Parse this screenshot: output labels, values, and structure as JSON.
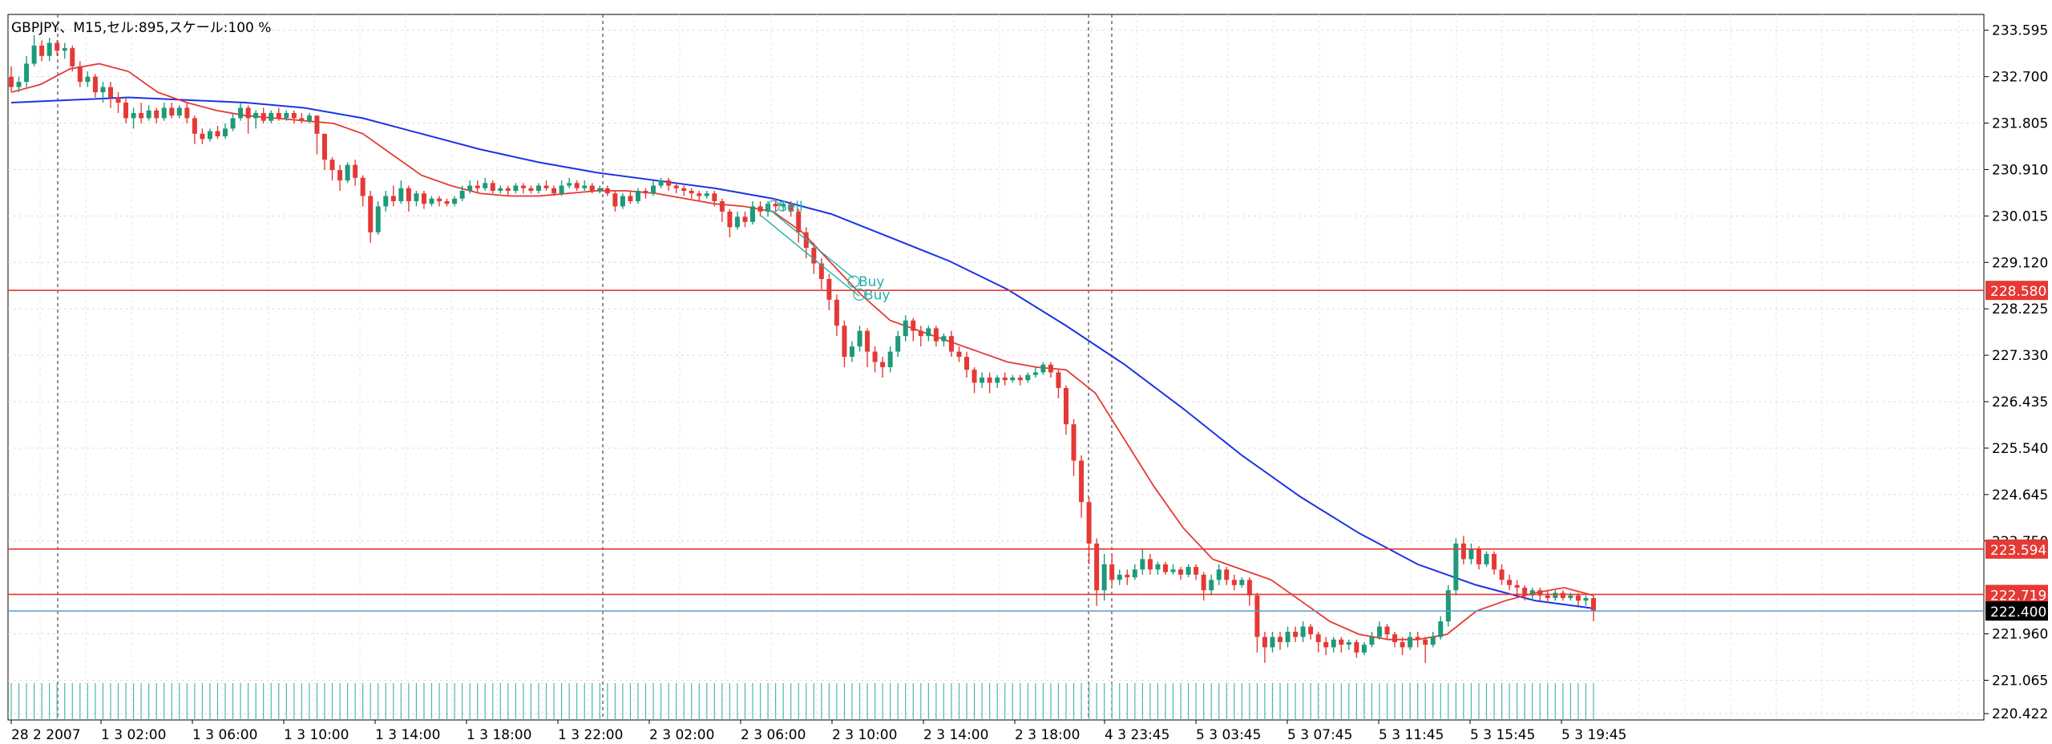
{
  "header": {
    "symbol": "GBPJPY",
    "separator": "、",
    "timeframe": "M15",
    "cells_label": "セル:",
    "cells_value": "895",
    "scale_label": "スケール:",
    "scale_value": "100 %"
  },
  "chart_data": {
    "type": "candlestick",
    "symbol": "GBPJPY",
    "timeframe": "M15",
    "y_ticks": [
      "233.595",
      "232.700",
      "231.805",
      "230.910",
      "230.015",
      "229.120",
      "228.225",
      "227.330",
      "226.435",
      "225.540",
      "224.645",
      "223.750",
      "221.960",
      "221.065",
      "220.422"
    ],
    "ylim": [
      220.3,
      233.9
    ],
    "time_labels": [
      "28 2 2007",
      "1 3 02:00",
      "1 3 06:00",
      "1 3 10:00",
      "1 3 14:00",
      "1 3 18:00",
      "1 3 22:00",
      "2 3 02:00",
      "2 3 06:00",
      "2 3 10:00",
      "2 3 14:00",
      "2 3 18:00",
      "4 3 23:45",
      "5 3 03:45",
      "5 3 07:45",
      "5 3 11:45",
      "5 3 15:45",
      "5 3 19:45"
    ],
    "horizontal_lines": [
      {
        "price": 228.58,
        "label": "228.580",
        "color": "#e53935"
      },
      {
        "price": 223.594,
        "label": "223.594",
        "color": "#e53935"
      },
      {
        "price": 222.719,
        "label": "222.719",
        "color": "#e53935"
      },
      {
        "price": 222.4,
        "label": "222.400",
        "color": "#5b9bd5",
        "label_bg": "#000000"
      }
    ],
    "vertical_separators": [
      "28 2 2007",
      "1 3 22:00",
      "2 3 18:00",
      "4 3 23:45"
    ],
    "trade_markers": [
      {
        "text": "Sell",
        "price": 230.2
      },
      {
        "text": "Buy",
        "price": 228.75
      },
      {
        "text": "Buy",
        "price": 228.5
      }
    ],
    "candles": [
      [
        232.7,
        232.5,
        232.9,
        232.4
      ],
      [
        232.5,
        232.6,
        232.7,
        232.4
      ],
      [
        232.6,
        232.95,
        233.1,
        232.5
      ],
      [
        232.95,
        233.3,
        233.5,
        232.9
      ],
      [
        233.3,
        233.1,
        233.4,
        233.0
      ],
      [
        233.1,
        233.35,
        233.45,
        233.0
      ],
      [
        233.35,
        233.2,
        233.4,
        233.1
      ],
      [
        233.2,
        233.25,
        233.35,
        233.05
      ],
      [
        233.25,
        232.9,
        233.3,
        232.8
      ],
      [
        232.9,
        232.6,
        233.0,
        232.5
      ],
      [
        232.6,
        232.7,
        232.8,
        232.5
      ],
      [
        232.7,
        232.4,
        232.75,
        232.3
      ],
      [
        232.4,
        232.5,
        232.6,
        232.2
      ],
      [
        232.5,
        232.3,
        232.6,
        232.1
      ],
      [
        232.3,
        232.2,
        232.4,
        232.0
      ],
      [
        232.2,
        231.9,
        232.3,
        231.8
      ],
      [
        231.9,
        232.0,
        232.1,
        231.7
      ],
      [
        232.0,
        231.9,
        232.2,
        231.8
      ],
      [
        231.9,
        232.05,
        232.15,
        231.85
      ],
      [
        232.05,
        231.9,
        232.1,
        231.8
      ],
      [
        231.9,
        232.1,
        232.2,
        231.85
      ],
      [
        232.1,
        231.95,
        232.2,
        231.9
      ],
      [
        231.95,
        232.1,
        232.15,
        231.9
      ],
      [
        232.1,
        231.9,
        232.2,
        231.8
      ],
      [
        231.9,
        231.6,
        231.95,
        231.4
      ],
      [
        231.6,
        231.5,
        231.7,
        231.4
      ],
      [
        231.5,
        231.65,
        231.7,
        231.45
      ],
      [
        231.65,
        231.55,
        231.75,
        231.5
      ],
      [
        231.55,
        231.7,
        231.8,
        231.5
      ],
      [
        231.7,
        231.9,
        232.0,
        231.65
      ],
      [
        231.9,
        232.1,
        232.2,
        231.85
      ],
      [
        232.1,
        231.9,
        232.15,
        231.6
      ],
      [
        231.9,
        232.0,
        232.05,
        231.7
      ],
      [
        232.0,
        231.85,
        232.1,
        231.8
      ],
      [
        231.85,
        232.0,
        232.05,
        231.8
      ],
      [
        232.0,
        231.9,
        232.1,
        231.85
      ],
      [
        231.9,
        232.0,
        232.05,
        231.85
      ],
      [
        232.0,
        231.9,
        232.05,
        231.8
      ],
      [
        231.9,
        231.85,
        232.0,
        231.8
      ],
      [
        231.85,
        231.95,
        232.0,
        231.8
      ],
      [
        231.95,
        231.6,
        231.95,
        231.2
      ],
      [
        231.6,
        231.1,
        231.6,
        230.9
      ],
      [
        231.1,
        230.9,
        231.15,
        230.7
      ],
      [
        230.9,
        230.7,
        231.0,
        230.5
      ],
      [
        230.7,
        231.0,
        231.05,
        230.65
      ],
      [
        231.0,
        230.75,
        231.1,
        230.6
      ],
      [
        230.75,
        230.4,
        230.8,
        230.2
      ],
      [
        230.4,
        229.7,
        230.5,
        229.5
      ],
      [
        229.7,
        230.2,
        230.3,
        229.65
      ],
      [
        230.2,
        230.4,
        230.5,
        230.1
      ],
      [
        230.4,
        230.3,
        230.6,
        230.2
      ],
      [
        230.3,
        230.55,
        230.7,
        230.25
      ],
      [
        230.55,
        230.3,
        230.6,
        230.1
      ],
      [
        230.3,
        230.45,
        230.5,
        230.2
      ],
      [
        230.45,
        230.25,
        230.5,
        230.15
      ],
      [
        230.25,
        230.35,
        230.4,
        230.2
      ],
      [
        230.35,
        230.3,
        230.4,
        230.2
      ],
      [
        230.3,
        230.25,
        230.35,
        230.2
      ],
      [
        230.25,
        230.35,
        230.4,
        230.2
      ],
      [
        230.35,
        230.5,
        230.6,
        230.3
      ],
      [
        230.5,
        230.6,
        230.7,
        230.45
      ],
      [
        230.6,
        230.55,
        230.7,
        230.45
      ],
      [
        230.55,
        230.65,
        230.75,
        230.5
      ],
      [
        230.65,
        230.5,
        230.7,
        230.45
      ],
      [
        230.5,
        230.55,
        230.6,
        230.45
      ],
      [
        230.55,
        230.5,
        230.6,
        230.4
      ],
      [
        230.5,
        230.6,
        230.65,
        230.45
      ],
      [
        230.6,
        230.55,
        230.65,
        230.45
      ],
      [
        230.55,
        230.5,
        230.6,
        230.45
      ],
      [
        230.5,
        230.6,
        230.65,
        230.45
      ],
      [
        230.6,
        230.55,
        230.7,
        230.5
      ],
      [
        230.55,
        230.45,
        230.6,
        230.4
      ],
      [
        230.45,
        230.6,
        230.7,
        230.4
      ],
      [
        230.6,
        230.65,
        230.75,
        230.55
      ],
      [
        230.65,
        230.55,
        230.7,
        230.5
      ],
      [
        230.55,
        230.6,
        230.7,
        230.5
      ],
      [
        230.6,
        230.5,
        230.65,
        230.45
      ],
      [
        230.5,
        230.55,
        230.6,
        230.45
      ],
      [
        230.55,
        230.45,
        230.6,
        230.4
      ],
      [
        230.45,
        230.2,
        230.5,
        230.1
      ],
      [
        230.2,
        230.4,
        230.45,
        230.15
      ],
      [
        230.4,
        230.3,
        230.5,
        230.25
      ],
      [
        230.3,
        230.5,
        230.55,
        230.25
      ],
      [
        230.5,
        230.45,
        230.55,
        230.35
      ],
      [
        230.45,
        230.6,
        230.7,
        230.4
      ],
      [
        230.6,
        230.7,
        230.75,
        230.55
      ],
      [
        230.7,
        230.6,
        230.75,
        230.5
      ],
      [
        230.6,
        230.55,
        230.65,
        230.45
      ],
      [
        230.55,
        230.5,
        230.6,
        230.4
      ],
      [
        230.5,
        230.45,
        230.55,
        230.35
      ],
      [
        230.45,
        230.4,
        230.5,
        230.3
      ],
      [
        230.4,
        230.45,
        230.5,
        230.35
      ],
      [
        230.45,
        230.3,
        230.5,
        230.2
      ],
      [
        230.3,
        230.1,
        230.35,
        229.9
      ],
      [
        230.1,
        229.8,
        230.15,
        229.6
      ],
      [
        229.8,
        230.0,
        230.1,
        229.75
      ],
      [
        230.0,
        229.9,
        230.1,
        229.8
      ],
      [
        229.9,
        230.2,
        230.3,
        229.85
      ],
      [
        230.2,
        230.1,
        230.3,
        230.0
      ],
      [
        230.1,
        230.25,
        230.3,
        230.0
      ],
      [
        230.25,
        230.2,
        230.35,
        230.1
      ],
      [
        230.2,
        230.25,
        230.3,
        230.1
      ],
      [
        230.25,
        230.1,
        230.3,
        230.0
      ],
      [
        230.1,
        229.7,
        230.15,
        229.5
      ],
      [
        229.7,
        229.4,
        229.8,
        229.2
      ],
      [
        229.4,
        229.1,
        229.5,
        228.9
      ],
      [
        229.1,
        228.8,
        229.2,
        228.6
      ],
      [
        228.8,
        228.4,
        228.9,
        228.2
      ],
      [
        228.4,
        227.9,
        228.5,
        227.7
      ],
      [
        227.9,
        227.3,
        228.0,
        227.1
      ],
      [
        227.3,
        227.5,
        227.6,
        227.2
      ],
      [
        227.5,
        227.8,
        227.9,
        227.4
      ],
      [
        227.8,
        227.4,
        227.85,
        227.1
      ],
      [
        227.4,
        227.2,
        227.5,
        227.0
      ],
      [
        227.2,
        227.1,
        227.3,
        226.9
      ],
      [
        227.1,
        227.4,
        227.5,
        227.0
      ],
      [
        227.4,
        227.7,
        227.8,
        227.3
      ],
      [
        227.7,
        228.0,
        228.1,
        227.6
      ],
      [
        228.0,
        227.8,
        228.05,
        227.6
      ],
      [
        227.8,
        227.7,
        227.9,
        227.5
      ],
      [
        227.7,
        227.85,
        227.9,
        227.6
      ],
      [
        227.85,
        227.6,
        227.9,
        227.5
      ],
      [
        227.6,
        227.7,
        227.75,
        227.5
      ],
      [
        227.7,
        227.4,
        227.8,
        227.3
      ],
      [
        227.4,
        227.3,
        227.5,
        227.2
      ],
      [
        227.3,
        227.05,
        227.4,
        226.9
      ],
      [
        227.05,
        226.8,
        227.1,
        226.6
      ],
      [
        226.8,
        226.9,
        227.0,
        226.7
      ],
      [
        226.9,
        226.8,
        227.0,
        226.6
      ],
      [
        226.8,
        226.9,
        226.95,
        226.7
      ],
      [
        226.9,
        226.85,
        227.0,
        226.75
      ],
      [
        226.85,
        226.9,
        226.95,
        226.8
      ],
      [
        226.9,
        226.85,
        226.95,
        226.75
      ],
      [
        226.85,
        226.95,
        227.0,
        226.8
      ],
      [
        226.95,
        227.0,
        227.1,
        226.9
      ],
      [
        227.0,
        227.15,
        227.2,
        226.95
      ],
      [
        227.15,
        227.0,
        227.2,
        226.9
      ],
      [
        227.0,
        226.7,
        227.05,
        226.5
      ],
      [
        226.7,
        226.0,
        226.75,
        225.8
      ],
      [
        226.0,
        225.3,
        226.1,
        225.0
      ],
      [
        225.3,
        224.5,
        225.4,
        224.2
      ],
      [
        224.5,
        223.7,
        224.6,
        223.3
      ],
      [
        223.7,
        222.8,
        223.8,
        222.5
      ],
      [
        222.8,
        223.3,
        223.5,
        222.6
      ],
      [
        223.3,
        223.0,
        223.5,
        222.9
      ],
      [
        223.0,
        223.1,
        223.2,
        222.9
      ],
      [
        223.1,
        223.05,
        223.2,
        222.9
      ],
      [
        223.05,
        223.2,
        223.3,
        223.0
      ],
      [
        223.2,
        223.4,
        223.6,
        223.1
      ],
      [
        223.4,
        223.2,
        223.5,
        223.1
      ],
      [
        223.2,
        223.3,
        223.35,
        223.1
      ],
      [
        223.3,
        223.15,
        223.35,
        223.1
      ],
      [
        223.15,
        223.2,
        223.3,
        223.1
      ],
      [
        223.2,
        223.1,
        223.25,
        223.0
      ],
      [
        223.1,
        223.25,
        223.3,
        223.05
      ],
      [
        223.25,
        223.1,
        223.3,
        223.0
      ],
      [
        223.1,
        222.8,
        223.15,
        222.6
      ],
      [
        222.8,
        223.0,
        223.1,
        222.7
      ],
      [
        223.0,
        223.2,
        223.3,
        222.9
      ],
      [
        223.2,
        223.0,
        223.25,
        222.9
      ],
      [
        223.0,
        222.9,
        223.1,
        222.8
      ],
      [
        222.9,
        223.0,
        223.05,
        222.85
      ],
      [
        223.0,
        222.7,
        223.05,
        222.5
      ],
      [
        222.7,
        221.9,
        222.75,
        221.6
      ],
      [
        221.9,
        221.7,
        222.0,
        221.4
      ],
      [
        221.7,
        221.9,
        222.0,
        221.6
      ],
      [
        221.9,
        221.8,
        222.0,
        221.65
      ],
      [
        221.8,
        222.0,
        222.1,
        221.7
      ],
      [
        222.0,
        221.9,
        222.1,
        221.8
      ],
      [
        221.9,
        222.1,
        222.2,
        221.8
      ],
      [
        222.1,
        221.95,
        222.15,
        221.85
      ],
      [
        221.95,
        221.8,
        222.0,
        221.6
      ],
      [
        221.8,
        221.7,
        221.9,
        221.55
      ],
      [
        221.7,
        221.85,
        221.9,
        221.6
      ],
      [
        221.85,
        221.75,
        221.9,
        221.6
      ],
      [
        221.75,
        221.8,
        221.85,
        221.65
      ],
      [
        221.8,
        221.6,
        221.85,
        221.5
      ],
      [
        221.6,
        221.75,
        221.8,
        221.55
      ],
      [
        221.75,
        221.9,
        222.0,
        221.7
      ],
      [
        221.9,
        222.1,
        222.2,
        221.85
      ],
      [
        222.1,
        221.95,
        222.15,
        221.85
      ],
      [
        221.95,
        221.8,
        222.0,
        221.7
      ],
      [
        221.8,
        221.7,
        221.9,
        221.55
      ],
      [
        221.7,
        221.9,
        222.0,
        221.65
      ],
      [
        221.9,
        221.85,
        222.0,
        221.7
      ],
      [
        221.85,
        221.75,
        221.9,
        221.4
      ],
      [
        221.75,
        221.9,
        222.0,
        221.7
      ],
      [
        221.9,
        222.2,
        222.3,
        221.85
      ],
      [
        222.2,
        222.8,
        222.9,
        222.1
      ],
      [
        222.8,
        223.7,
        223.8,
        222.7
      ],
      [
        223.7,
        223.4,
        223.85,
        223.3
      ],
      [
        223.4,
        223.6,
        223.7,
        223.3
      ],
      [
        223.6,
        223.3,
        223.65,
        223.2
      ],
      [
        223.3,
        223.5,
        223.55,
        223.25
      ],
      [
        223.5,
        223.2,
        223.55,
        223.1
      ],
      [
        223.2,
        223.0,
        223.3,
        222.9
      ],
      [
        223.0,
        222.9,
        223.1,
        222.8
      ],
      [
        222.9,
        222.85,
        223.0,
        222.7
      ],
      [
        222.85,
        222.7,
        222.9,
        222.6
      ],
      [
        222.7,
        222.8,
        222.85,
        222.6
      ],
      [
        222.8,
        222.7,
        222.85,
        222.6
      ],
      [
        222.7,
        222.65,
        222.8,
        222.55
      ],
      [
        222.65,
        222.75,
        222.8,
        222.6
      ],
      [
        222.75,
        222.65,
        222.8,
        222.6
      ],
      [
        222.65,
        222.7,
        222.75,
        222.6
      ],
      [
        222.7,
        222.6,
        222.75,
        222.5
      ],
      [
        222.6,
        222.65,
        222.7,
        222.5
      ],
      [
        222.65,
        222.4,
        222.7,
        222.2
      ]
    ],
    "ma_fast_color": "#e53935",
    "ma_slow_color": "#1a33e6",
    "ma_fast": [
      232.4,
      232.55,
      232.85,
      232.95,
      232.8,
      232.4,
      232.2,
      232.05,
      231.95,
      231.9,
      231.85,
      231.8,
      231.6,
      231.2,
      230.8,
      230.6,
      230.45,
      230.4,
      230.4,
      230.45,
      230.5,
      230.5,
      230.45,
      230.35,
      230.25,
      230.2,
      230.1,
      229.7,
      229.1,
      228.5,
      228.0,
      227.8,
      227.6,
      227.4,
      227.2,
      227.1,
      227.05,
      226.6,
      225.7,
      224.8,
      224.0,
      223.4,
      223.2,
      223.0,
      222.6,
      222.2,
      221.95,
      221.85,
      221.85,
      221.95,
      222.4,
      222.6,
      222.75,
      222.85,
      222.7
    ],
    "ma_slow": [
      232.2,
      232.25,
      232.3,
      232.25,
      232.2,
      232.1,
      231.9,
      231.6,
      231.3,
      231.05,
      230.85,
      230.7,
      230.55,
      230.35,
      230.05,
      229.6,
      229.15,
      228.6,
      227.9,
      227.15,
      226.3,
      225.4,
      224.6,
      223.9,
      223.3,
      222.9,
      222.6,
      222.45
    ]
  }
}
